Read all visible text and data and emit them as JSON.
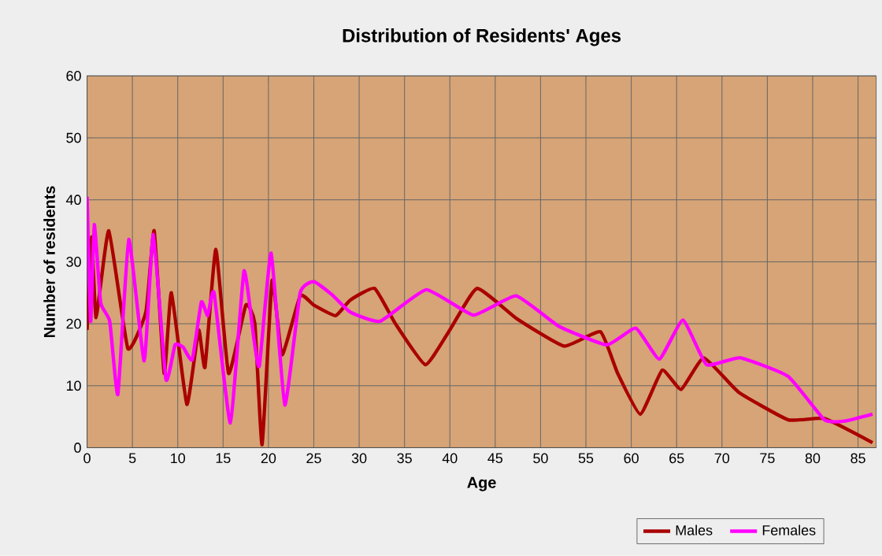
{
  "chart_data": {
    "type": "line",
    "title": "Distribution of Residents' Ages",
    "xlabel": "Age",
    "ylabel": "Number of residents",
    "xlim": [
      0,
      87
    ],
    "ylim": [
      0,
      60
    ],
    "xticks": [
      0,
      5,
      10,
      15,
      20,
      25,
      30,
      35,
      40,
      45,
      50,
      55,
      60,
      65,
      70,
      75,
      80,
      85
    ],
    "yticks": [
      0,
      10,
      20,
      30,
      40,
      50,
      60
    ],
    "grid": true,
    "legend": "bottom right",
    "marker": "none",
    "line_style": "solid",
    "series": [
      {
        "name": "Males",
        "color": "#aa0000",
        "x": [
          0,
          0.5,
          1,
          2.4,
          4.5,
          6.5,
          7.4,
          8.5,
          9.3,
          11,
          12.3,
          13,
          14.2,
          15.6,
          17.5,
          18.5,
          19.3,
          20.4,
          21.5,
          23.5,
          25,
          27.4,
          29,
          31.7,
          34,
          37.3,
          40,
          43,
          47.4,
          52.6,
          56.6,
          58.5,
          61,
          63.4,
          65.5,
          68,
          71.8,
          77.3,
          81.3,
          86.6
        ],
        "values": [
          19,
          34,
          21,
          35,
          16,
          22,
          35,
          12,
          25,
          7,
          19,
          13,
          32,
          12,
          23,
          20,
          0.5,
          27,
          15,
          24.5,
          23,
          21.3,
          23.8,
          25.7,
          20,
          13.4,
          19,
          25.7,
          20.8,
          16.4,
          18.7,
          12,
          5.4,
          12.5,
          9.4,
          14.5,
          9,
          4.5,
          4.7,
          0.8
        ]
      },
      {
        "name": "Females",
        "color": "#ff00ff",
        "x": [
          0,
          0.4,
          0.8,
          1.5,
          2.5,
          3.4,
          4.6,
          6.3,
          7.3,
          8.7,
          9.7,
          10.6,
          11.6,
          12.6,
          13.3,
          14,
          15.8,
          17.3,
          18.4,
          19,
          20.3,
          21.8,
          23.5,
          25,
          27,
          29,
          32.3,
          37.4,
          42.6,
          47.3,
          52,
          57.3,
          60.5,
          63.1,
          65.7,
          68.3,
          72,
          77.3,
          81.3,
          83.6,
          86.6
        ],
        "values": [
          40.5,
          20.4,
          36,
          23.4,
          20.4,
          8.6,
          33.6,
          14,
          34.4,
          11,
          16.6,
          16.2,
          14.2,
          23.5,
          21.3,
          25,
          4,
          28.5,
          17.5,
          13.2,
          31.4,
          6.9,
          25,
          26.8,
          24.7,
          21.9,
          20.4,
          25.5,
          21.4,
          24.5,
          19.6,
          16.6,
          19.3,
          14.3,
          20.6,
          13.4,
          14.5,
          11.5,
          4.5,
          4.3,
          5.4
        ]
      }
    ]
  }
}
